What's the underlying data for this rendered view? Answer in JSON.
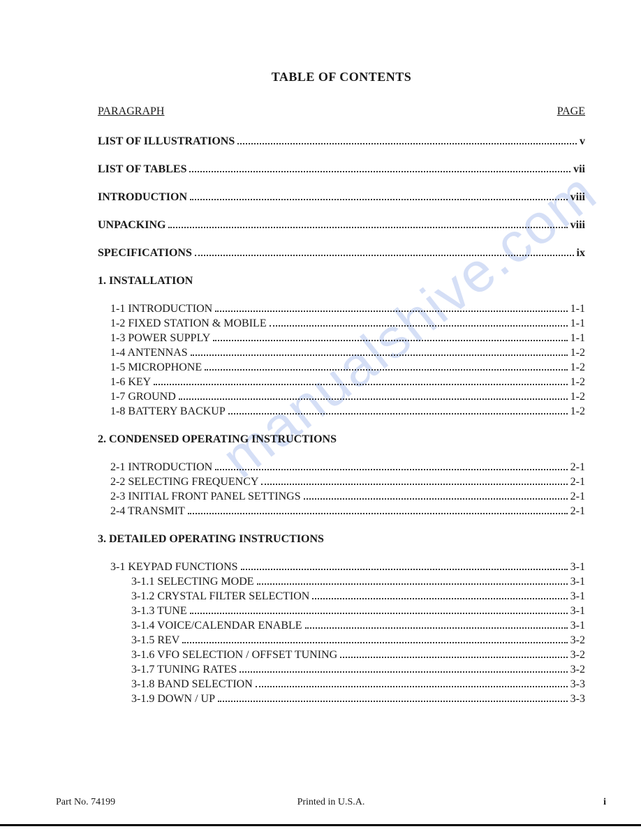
{
  "title": "TABLE OF CONTENTS",
  "header_left": "PARAGRAPH",
  "header_right": "PAGE",
  "watermark": "manualshive.com",
  "front_matter": [
    {
      "label": "LIST OF ILLUSTRATIONS",
      "page": "v"
    },
    {
      "label": "LIST OF TABLES",
      "page": "vii"
    },
    {
      "label": "INTRODUCTION",
      "page": "viii"
    },
    {
      "label": "UNPACKING",
      "page": "viii"
    },
    {
      "label": "SPECIFICATIONS",
      "page": "ix"
    }
  ],
  "sections": [
    {
      "heading": "1. INSTALLATION",
      "entries": [
        {
          "label": "1-1  INTRODUCTION",
          "page": "1-1"
        },
        {
          "label": "1-2  FIXED STATION & MOBILE",
          "page": "1-1"
        },
        {
          "label": "1-3  POWER SUPPLY",
          "page": "1-1"
        },
        {
          "label": "1-4  ANTENNAS",
          "page": "1-2"
        },
        {
          "label": "1-5  MICROPHONE",
          "page": "1-2"
        },
        {
          "label": "1-6  KEY",
          "page": "1-2"
        },
        {
          "label": "1-7  GROUND",
          "page": "1-2"
        },
        {
          "label": "1-8  BATTERY BACKUP",
          "page": "1-2"
        }
      ]
    },
    {
      "heading": "2. CONDENSED OPERATING INSTRUCTIONS",
      "entries": [
        {
          "label": "2-1  INTRODUCTION",
          "page": "2-1"
        },
        {
          "label": "2-2  SELECTING FREQUENCY",
          "page": "2-1"
        },
        {
          "label": "2-3  INITIAL FRONT PANEL SETTINGS",
          "page": "2-1"
        },
        {
          "label": "2-4  TRANSMIT",
          "page": "2-1"
        }
      ]
    },
    {
      "heading": "3. DETAILED OPERATING INSTRUCTIONS",
      "entries": [
        {
          "label": "3-1  KEYPAD FUNCTIONS",
          "page": "3-1",
          "children": [
            {
              "label": "3-1.1  SELECTING MODE",
              "page": "3-1"
            },
            {
              "label": "3-1.2  CRYSTAL FILTER SELECTION",
              "page": "3-1"
            },
            {
              "label": "3-1.3  TUNE",
              "page": "3-1"
            },
            {
              "label": "3-1.4  VOICE/CALENDAR ENABLE",
              "page": "3-1"
            },
            {
              "label": "3-1.5  REV",
              "page": "3-2"
            },
            {
              "label": "3-1.6  VFO SELECTION / OFFSET TUNING",
              "page": "3-2"
            },
            {
              "label": "3-1.7  TUNING RATES",
              "page": "3-2"
            },
            {
              "label": "3-1.8  BAND SELECTION",
              "page": "3-3"
            },
            {
              "label": "3-1.9  DOWN / UP",
              "page": "3-3"
            }
          ]
        }
      ]
    }
  ],
  "footer": {
    "left": "Part No. 74199",
    "center": "Printed in U.S.A.",
    "right": "i"
  }
}
